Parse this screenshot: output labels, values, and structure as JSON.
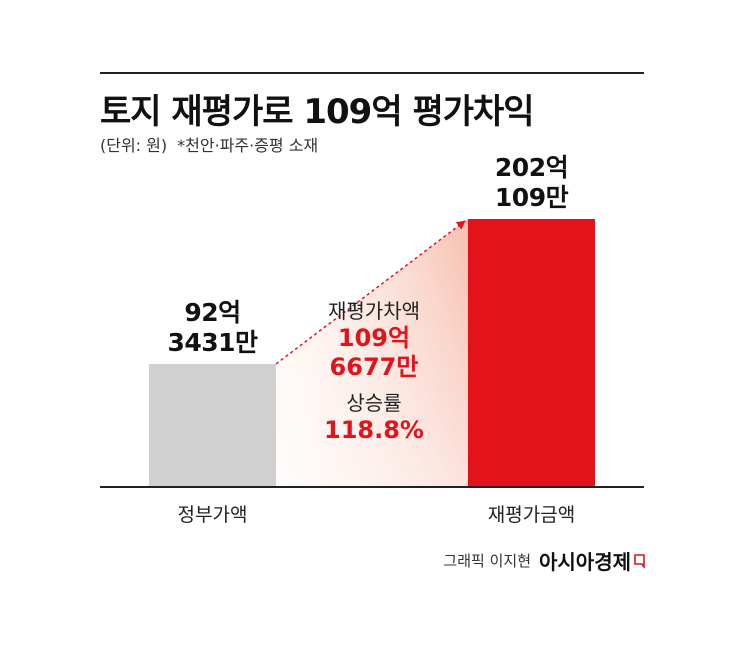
{
  "header": {
    "title": "토지 재평가로 109억 평가차익",
    "unit_note": "(단위: 원)",
    "sub_note": "*천안·파주·증평 소재"
  },
  "chart_data": {
    "type": "bar",
    "categories": [
      "정부가액",
      "재평가금액"
    ],
    "values": [
      9234310000,
      20201090000
    ],
    "value_labels": [
      {
        "line1": "92억",
        "line2": "3431만"
      },
      {
        "line1": "202억",
        "line2": "109만"
      }
    ],
    "ylim": [
      0,
      20201090000
    ],
    "colors": [
      "#d0d0d0",
      "#e3121b"
    ],
    "difference": {
      "caption": "재평가차액",
      "value_line1": "109억",
      "value_line2": "6677만",
      "rate_caption": "상승률",
      "rate_value": "118.8%"
    }
  },
  "footer": {
    "credit": "그래픽 이지현",
    "brand": "아시아경제",
    "brand_color": "#e3121b"
  }
}
